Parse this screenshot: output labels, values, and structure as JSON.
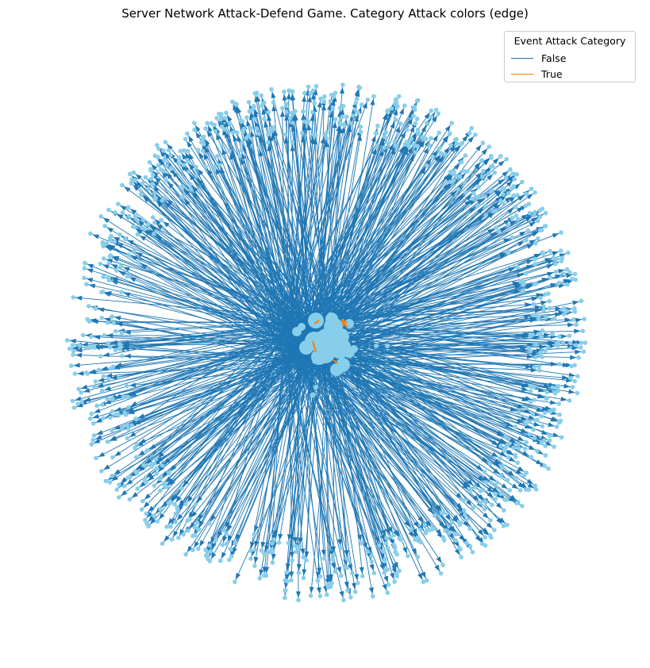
{
  "title": "Server Network Attack-Defend Game. Category Attack colors (edge)",
  "legend": {
    "title": "Event Attack Category",
    "entries": [
      {
        "label": "False",
        "color": "#1f77b4"
      },
      {
        "label": "True",
        "color": "#ff7f0e"
      }
    ]
  },
  "colors": {
    "node": "#87ceeb",
    "edge_false": "#1f77b4",
    "edge_true": "#ff7f0e"
  }
}
